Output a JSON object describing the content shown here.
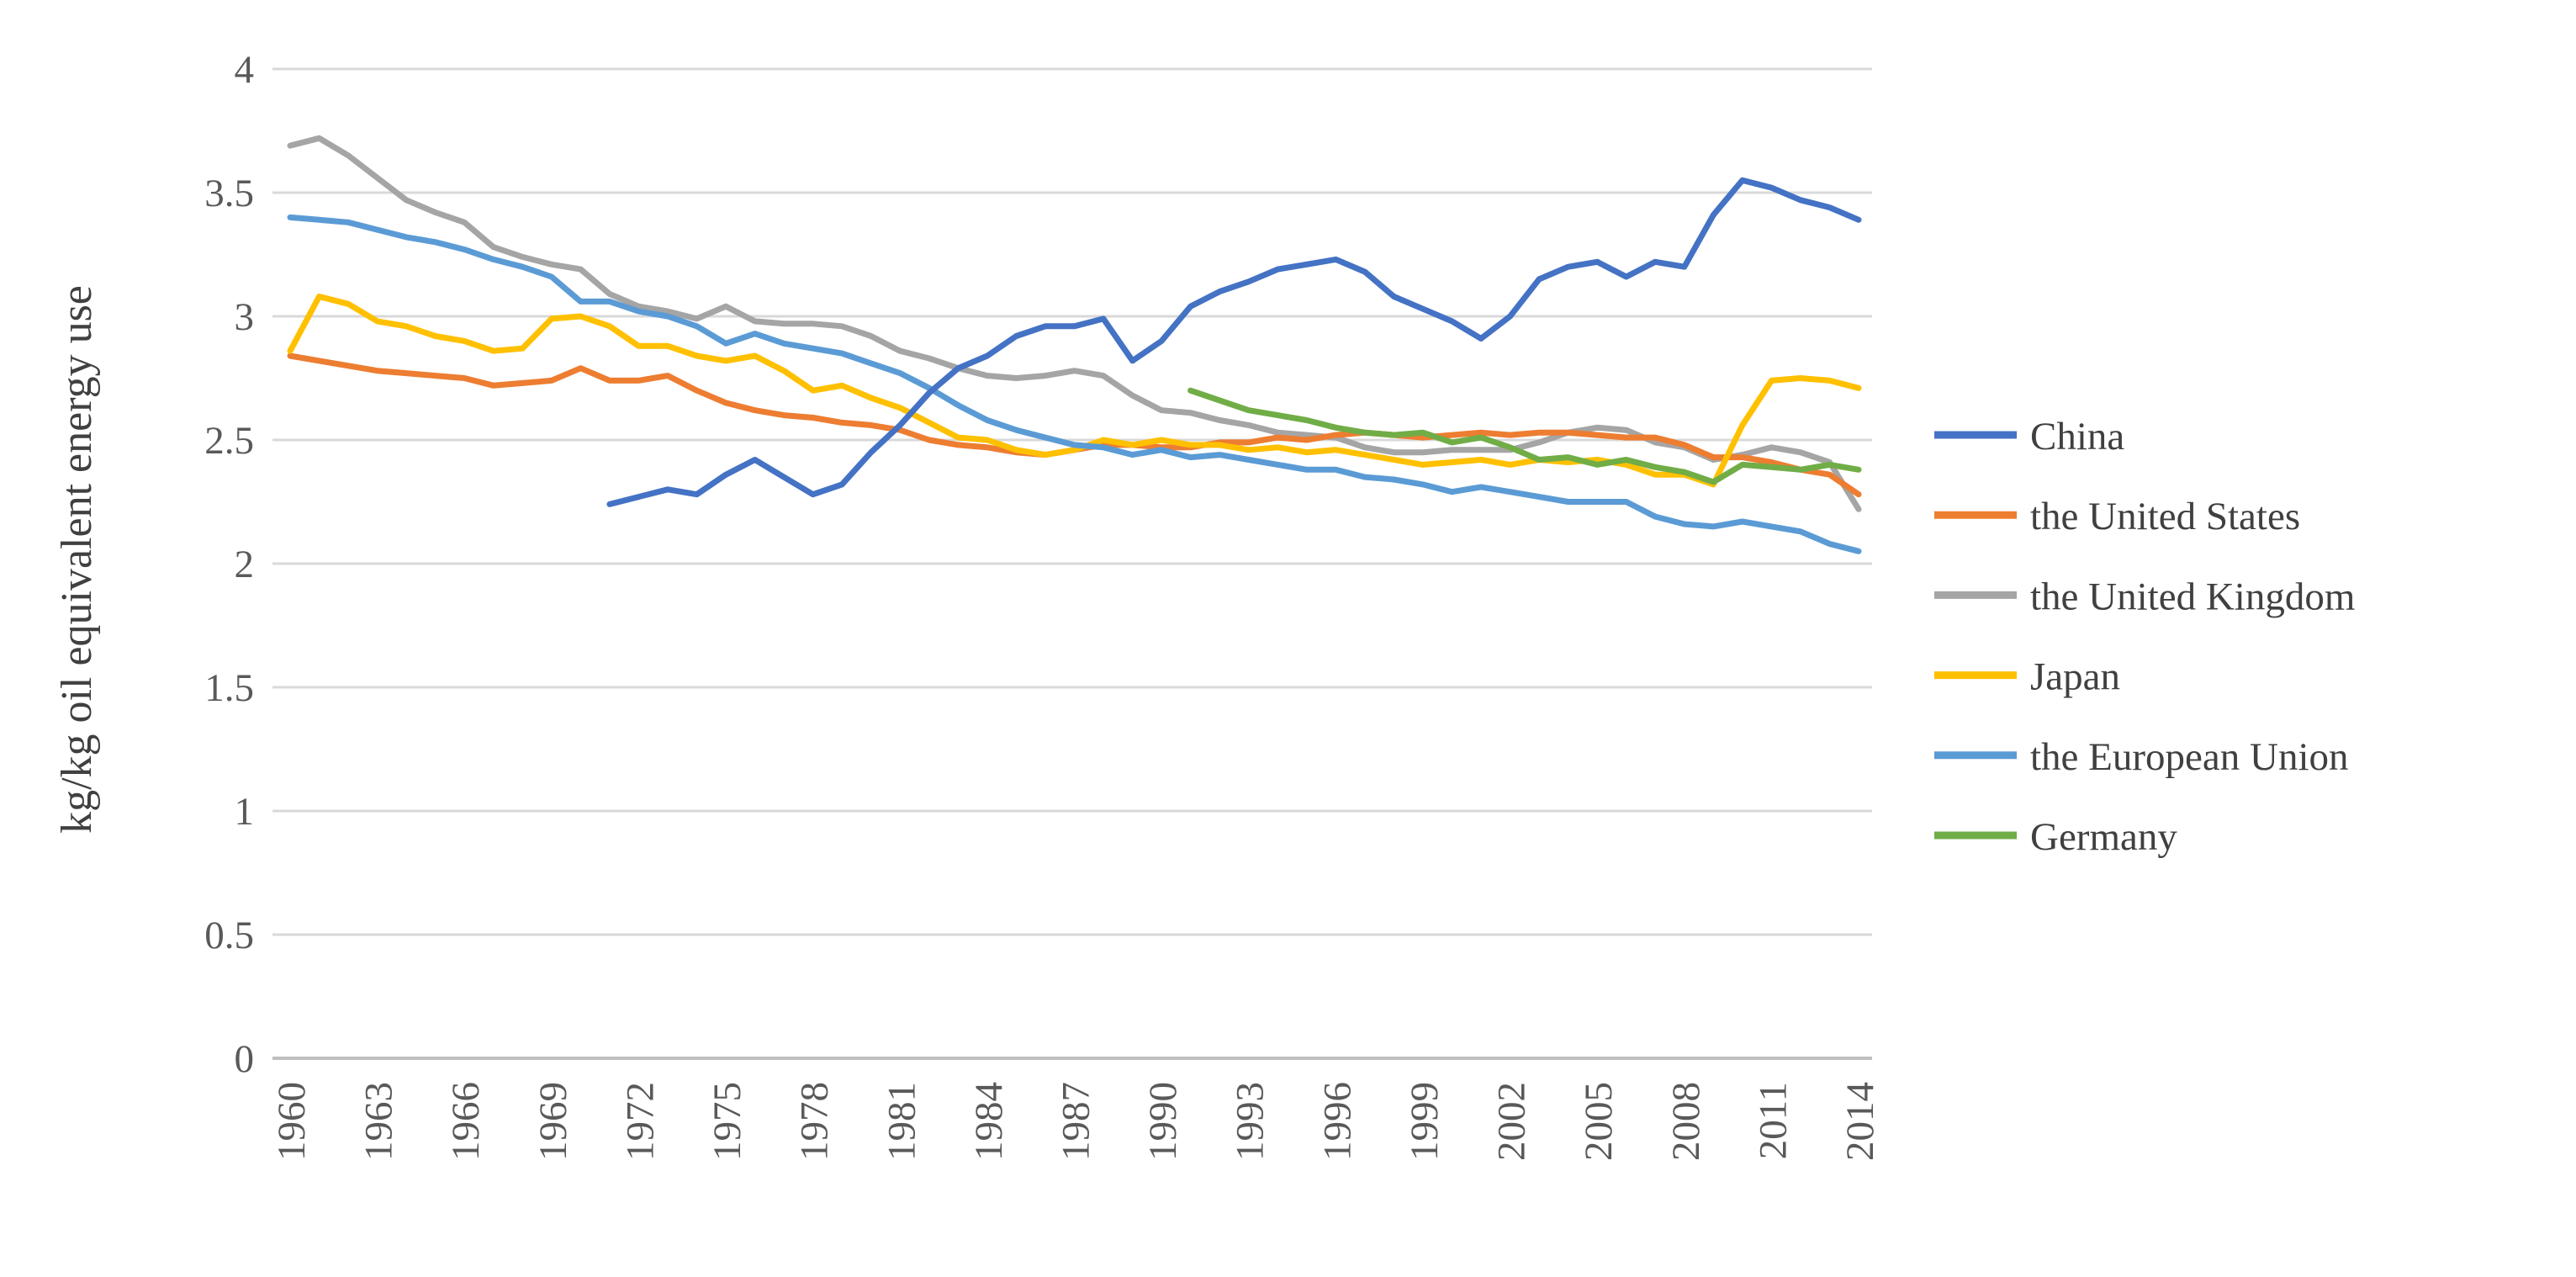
{
  "figure": {
    "background_color": "#ffffff",
    "border_color": "#c6c6c6",
    "gridline_color": "#d9d9d9",
    "axis_line_color": "#bfbfbf",
    "tick_label_color": "#595959",
    "axis_title_color": "#404040"
  },
  "chart_data": {
    "type": "line",
    "title": "",
    "xlabel": "",
    "ylabel": "kg/kg oil equivalent energy use",
    "ylim": [
      0,
      4
    ],
    "ytick_labels": [
      "0",
      "0.5",
      "1",
      "1.5",
      "2",
      "2.5",
      "3",
      "3.5",
      "4"
    ],
    "ytick_values": [
      0,
      0.5,
      1,
      1.5,
      2,
      2.5,
      3,
      3.5,
      4
    ],
    "grid": "horizontal",
    "legend_position": "right",
    "x": [
      1960,
      1961,
      1962,
      1963,
      1964,
      1965,
      1966,
      1967,
      1968,
      1969,
      1970,
      1971,
      1972,
      1973,
      1974,
      1975,
      1976,
      1977,
      1978,
      1979,
      1980,
      1981,
      1982,
      1983,
      1984,
      1985,
      1986,
      1987,
      1988,
      1989,
      1990,
      1991,
      1992,
      1993,
      1994,
      1995,
      1996,
      1997,
      1998,
      1999,
      2000,
      2001,
      2002,
      2003,
      2004,
      2005,
      2006,
      2007,
      2008,
      2009,
      2010,
      2011,
      2012,
      2013,
      2014
    ],
    "xtick_labels": [
      "1960",
      "1963",
      "1966",
      "1969",
      "1972",
      "1975",
      "1978",
      "1981",
      "1984",
      "1987",
      "1990",
      "1993",
      "1996",
      "1999",
      "2002",
      "2005",
      "2008",
      "2011",
      "2014"
    ],
    "series": [
      {
        "name": "China",
        "color": "#4472c4",
        "values": [
          null,
          null,
          null,
          null,
          null,
          null,
          null,
          null,
          null,
          null,
          null,
          2.24,
          2.27,
          2.3,
          2.28,
          2.36,
          2.42,
          2.35,
          2.28,
          2.32,
          2.45,
          2.56,
          2.69,
          2.79,
          2.84,
          2.92,
          2.96,
          2.96,
          2.99,
          2.82,
          2.9,
          3.04,
          3.1,
          3.14,
          3.19,
          3.21,
          3.23,
          3.18,
          3.08,
          3.03,
          2.98,
          2.91,
          3.0,
          3.15,
          3.2,
          3.22,
          3.16,
          3.22,
          3.2,
          3.41,
          3.55,
          3.52,
          3.47,
          3.44,
          3.39
        ]
      },
      {
        "name": "the United States",
        "color": "#ed7d31",
        "values": [
          2.84,
          2.82,
          2.8,
          2.78,
          2.77,
          2.76,
          2.75,
          2.72,
          2.73,
          2.74,
          2.79,
          2.74,
          2.74,
          2.76,
          2.7,
          2.65,
          2.62,
          2.6,
          2.59,
          2.57,
          2.56,
          2.54,
          2.5,
          2.48,
          2.47,
          2.45,
          2.44,
          2.46,
          2.48,
          2.48,
          2.47,
          2.47,
          2.49,
          2.49,
          2.51,
          2.5,
          2.52,
          2.53,
          2.52,
          2.51,
          2.52,
          2.53,
          2.52,
          2.53,
          2.53,
          2.52,
          2.51,
          2.51,
          2.48,
          2.43,
          2.43,
          2.41,
          2.38,
          2.36,
          2.28
        ]
      },
      {
        "name": "the United Kingdom",
        "color": "#a5a5a5",
        "values": [
          3.69,
          3.72,
          3.65,
          3.56,
          3.47,
          3.42,
          3.38,
          3.28,
          3.24,
          3.21,
          3.19,
          3.09,
          3.04,
          3.02,
          2.99,
          3.04,
          2.98,
          2.97,
          2.97,
          2.96,
          2.92,
          2.86,
          2.83,
          2.79,
          2.76,
          2.75,
          2.76,
          2.78,
          2.76,
          2.68,
          2.62,
          2.61,
          2.58,
          2.56,
          2.53,
          2.52,
          2.51,
          2.47,
          2.45,
          2.45,
          2.46,
          2.46,
          2.46,
          2.49,
          2.53,
          2.55,
          2.54,
          2.49,
          2.47,
          2.42,
          2.44,
          2.47,
          2.45,
          2.41,
          2.22
        ]
      },
      {
        "name": "Japan",
        "color": "#ffc000",
        "values": [
          2.86,
          3.08,
          3.05,
          2.98,
          2.96,
          2.92,
          2.9,
          2.86,
          2.87,
          2.99,
          3.0,
          2.96,
          2.88,
          2.88,
          2.84,
          2.82,
          2.84,
          2.78,
          2.7,
          2.72,
          2.67,
          2.63,
          2.57,
          2.51,
          2.5,
          2.46,
          2.44,
          2.46,
          2.5,
          2.48,
          2.5,
          2.48,
          2.48,
          2.46,
          2.47,
          2.45,
          2.46,
          2.44,
          2.42,
          2.4,
          2.41,
          2.42,
          2.4,
          2.42,
          2.41,
          2.42,
          2.4,
          2.36,
          2.36,
          2.32,
          2.56,
          2.74,
          2.75,
          2.74,
          2.71
        ]
      },
      {
        "name": "the European Union",
        "color": "#5b9bd5",
        "values": [
          3.4,
          3.39,
          3.38,
          3.35,
          3.32,
          3.3,
          3.27,
          3.23,
          3.2,
          3.16,
          3.06,
          3.06,
          3.02,
          3.0,
          2.96,
          2.89,
          2.93,
          2.89,
          2.87,
          2.85,
          2.81,
          2.77,
          2.71,
          2.64,
          2.58,
          2.54,
          2.51,
          2.48,
          2.47,
          2.44,
          2.46,
          2.43,
          2.44,
          2.42,
          2.4,
          2.38,
          2.38,
          2.35,
          2.34,
          2.32,
          2.29,
          2.31,
          2.29,
          2.27,
          2.25,
          2.25,
          2.25,
          2.19,
          2.16,
          2.15,
          2.17,
          2.15,
          2.13,
          2.08,
          2.05
        ]
      },
      {
        "name": "Germany",
        "color": "#70ad47",
        "values": [
          null,
          null,
          null,
          null,
          null,
          null,
          null,
          null,
          null,
          null,
          null,
          null,
          null,
          null,
          null,
          null,
          null,
          null,
          null,
          null,
          null,
          null,
          null,
          null,
          null,
          null,
          null,
          null,
          null,
          null,
          null,
          2.7,
          2.66,
          2.62,
          2.6,
          2.58,
          2.55,
          2.53,
          2.52,
          2.53,
          2.49,
          2.51,
          2.47,
          2.42,
          2.43,
          2.4,
          2.42,
          2.39,
          2.37,
          2.33,
          2.4,
          2.39,
          2.38,
          2.4,
          2.38
        ]
      }
    ]
  },
  "legend": {
    "items": [
      {
        "label": "China",
        "color": "#4472c4"
      },
      {
        "label": "the United States",
        "color": "#ed7d31"
      },
      {
        "label": "the United Kingdom",
        "color": "#a5a5a5"
      },
      {
        "label": "Japan",
        "color": "#ffc000"
      },
      {
        "label": "the European Union",
        "color": "#5b9bd5"
      },
      {
        "label": "Germany",
        "color": "#70ad47"
      }
    ]
  }
}
